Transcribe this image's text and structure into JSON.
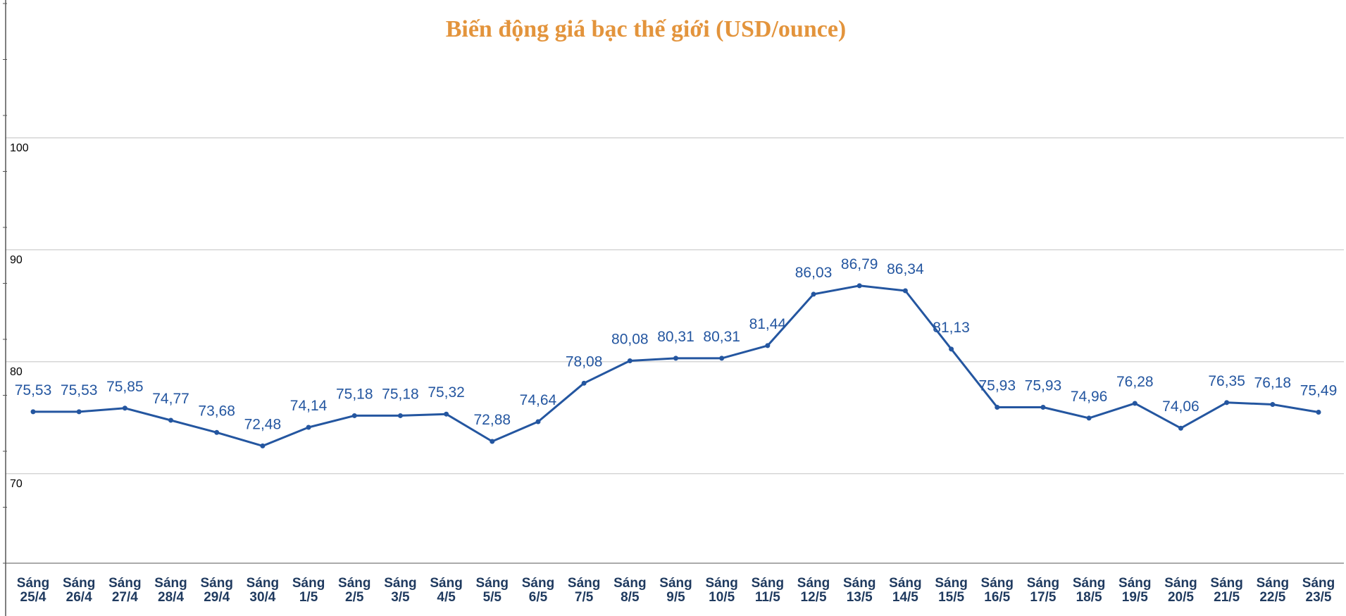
{
  "chart_data": {
    "type": "line",
    "title": "Biến động giá bạc thế giới (USD/ounce)",
    "xlabel": "",
    "ylabel": "",
    "ylim": [
      62,
      112
    ],
    "yticks": [
      70,
      80,
      90,
      100
    ],
    "grid": true,
    "legend": "none",
    "categories": [
      [
        "Sáng",
        "25/4"
      ],
      [
        "Sáng",
        "26/4"
      ],
      [
        "Sáng",
        "27/4"
      ],
      [
        "Sáng",
        "28/4"
      ],
      [
        "Sáng",
        "29/4"
      ],
      [
        "Sáng",
        "30/4"
      ],
      [
        "Sáng",
        "1/5"
      ],
      [
        "Sáng",
        "2/5"
      ],
      [
        "Sáng",
        "3/5"
      ],
      [
        "Sáng",
        "4/5"
      ],
      [
        "Sáng",
        "5/5"
      ],
      [
        "Sáng",
        "6/5"
      ],
      [
        "Sáng",
        "7/5"
      ],
      [
        "Sáng",
        "8/5"
      ],
      [
        "Sáng",
        "9/5"
      ],
      [
        "Sáng",
        "10/5"
      ],
      [
        "Sáng",
        "11/5"
      ],
      [
        "Sáng",
        "12/5"
      ],
      [
        "Sáng",
        "13/5"
      ],
      [
        "Sáng",
        "14/5"
      ],
      [
        "Sáng",
        "15/5"
      ],
      [
        "Sáng",
        "16/5"
      ],
      [
        "Sáng",
        "17/5"
      ],
      [
        "Sáng",
        "18/5"
      ],
      [
        "Sáng",
        "19/5"
      ],
      [
        "Sáng",
        "20/5"
      ],
      [
        "Sáng",
        "21/5"
      ],
      [
        "Sáng",
        "22/5"
      ],
      [
        "Sáng",
        "23/5"
      ]
    ],
    "series": [
      {
        "values": [
          75.53,
          75.53,
          75.85,
          74.77,
          73.68,
          72.48,
          74.14,
          75.18,
          75.18,
          75.32,
          72.88,
          74.64,
          78.08,
          80.08,
          80.31,
          80.31,
          81.44,
          86.03,
          86.79,
          86.34,
          81.13,
          75.93,
          75.93,
          74.96,
          76.28,
          74.06,
          76.35,
          76.18,
          75.49
        ],
        "labels": [
          "75,53",
          "75,53",
          "75,85",
          "74,77",
          "73,68",
          "72,48",
          "74,14",
          "75,18",
          "75,18",
          "75,32",
          "72,88",
          "74,64",
          "78,08",
          "80,08",
          "80,31",
          "80,31",
          "81,44",
          "86,03",
          "86,79",
          "86,34",
          "81,13",
          "75,93",
          "75,93",
          "74,96",
          "76,28",
          "74,06",
          "76,35",
          "76,18",
          "75,49"
        ]
      }
    ],
    "colors": {
      "title": "#e3943c",
      "line": "#2456a0",
      "grid": "#c8c8c8",
      "axis": "#555555",
      "xtick": "#1f3a5f"
    }
  }
}
